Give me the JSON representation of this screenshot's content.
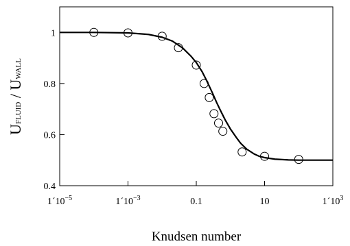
{
  "chart_data": {
    "type": "scatter",
    "xlabel": "Knudsen number",
    "ylabel": {
      "u1": "U",
      "sub1": "FLUID",
      "sep": " / ",
      "u2": "U",
      "sub2": "WALL"
    },
    "x_scale": "log",
    "xlim": [
      1e-05,
      1000
    ],
    "ylim": [
      0.4,
      1.1
    ],
    "x_ticks": [
      {
        "value": 1e-05,
        "base": "1´10",
        "exp": "−5"
      },
      {
        "value": 0.001,
        "base": "1´10",
        "exp": "−3"
      },
      {
        "value": 0.1,
        "base": "0.1",
        "exp": ""
      },
      {
        "value": 10,
        "base": "10",
        "exp": ""
      },
      {
        "value": 1000,
        "base": "1´10",
        "exp": "3"
      }
    ],
    "y_ticks": [
      {
        "value": 0.4,
        "label": "0.4"
      },
      {
        "value": 0.6,
        "label": "0.6"
      },
      {
        "value": 0.8,
        "label": "0.8"
      },
      {
        "value": 1.0,
        "label": "1"
      }
    ],
    "grid": false,
    "legend": "none",
    "series": [
      {
        "kind": "line",
        "x": [
          1e-05,
          0.0001,
          0.001,
          0.004,
          0.01,
          0.02,
          0.04,
          0.07,
          0.1,
          0.15,
          0.2,
          0.3,
          0.4,
          0.5,
          0.7,
          1,
          1.5,
          2,
          3,
          5,
          7,
          10,
          20,
          50,
          100,
          1000
        ],
        "y": [
          1.0,
          1.0,
          0.998,
          0.992,
          0.981,
          0.966,
          0.939,
          0.907,
          0.882,
          0.845,
          0.812,
          0.762,
          0.724,
          0.697,
          0.658,
          0.622,
          0.588,
          0.566,
          0.543,
          0.524,
          0.515,
          0.51,
          0.504,
          0.501,
          0.5,
          0.5
        ]
      },
      {
        "kind": "markers",
        "x": [
          0.0001,
          0.001,
          0.01,
          0.03,
          0.1,
          0.17,
          0.24,
          0.33,
          0.45,
          0.6,
          2.2,
          10,
          100
        ],
        "y": [
          1.0,
          0.998,
          0.985,
          0.94,
          0.872,
          0.8,
          0.745,
          0.682,
          0.645,
          0.613,
          0.532,
          0.515,
          0.503
        ]
      }
    ]
  }
}
